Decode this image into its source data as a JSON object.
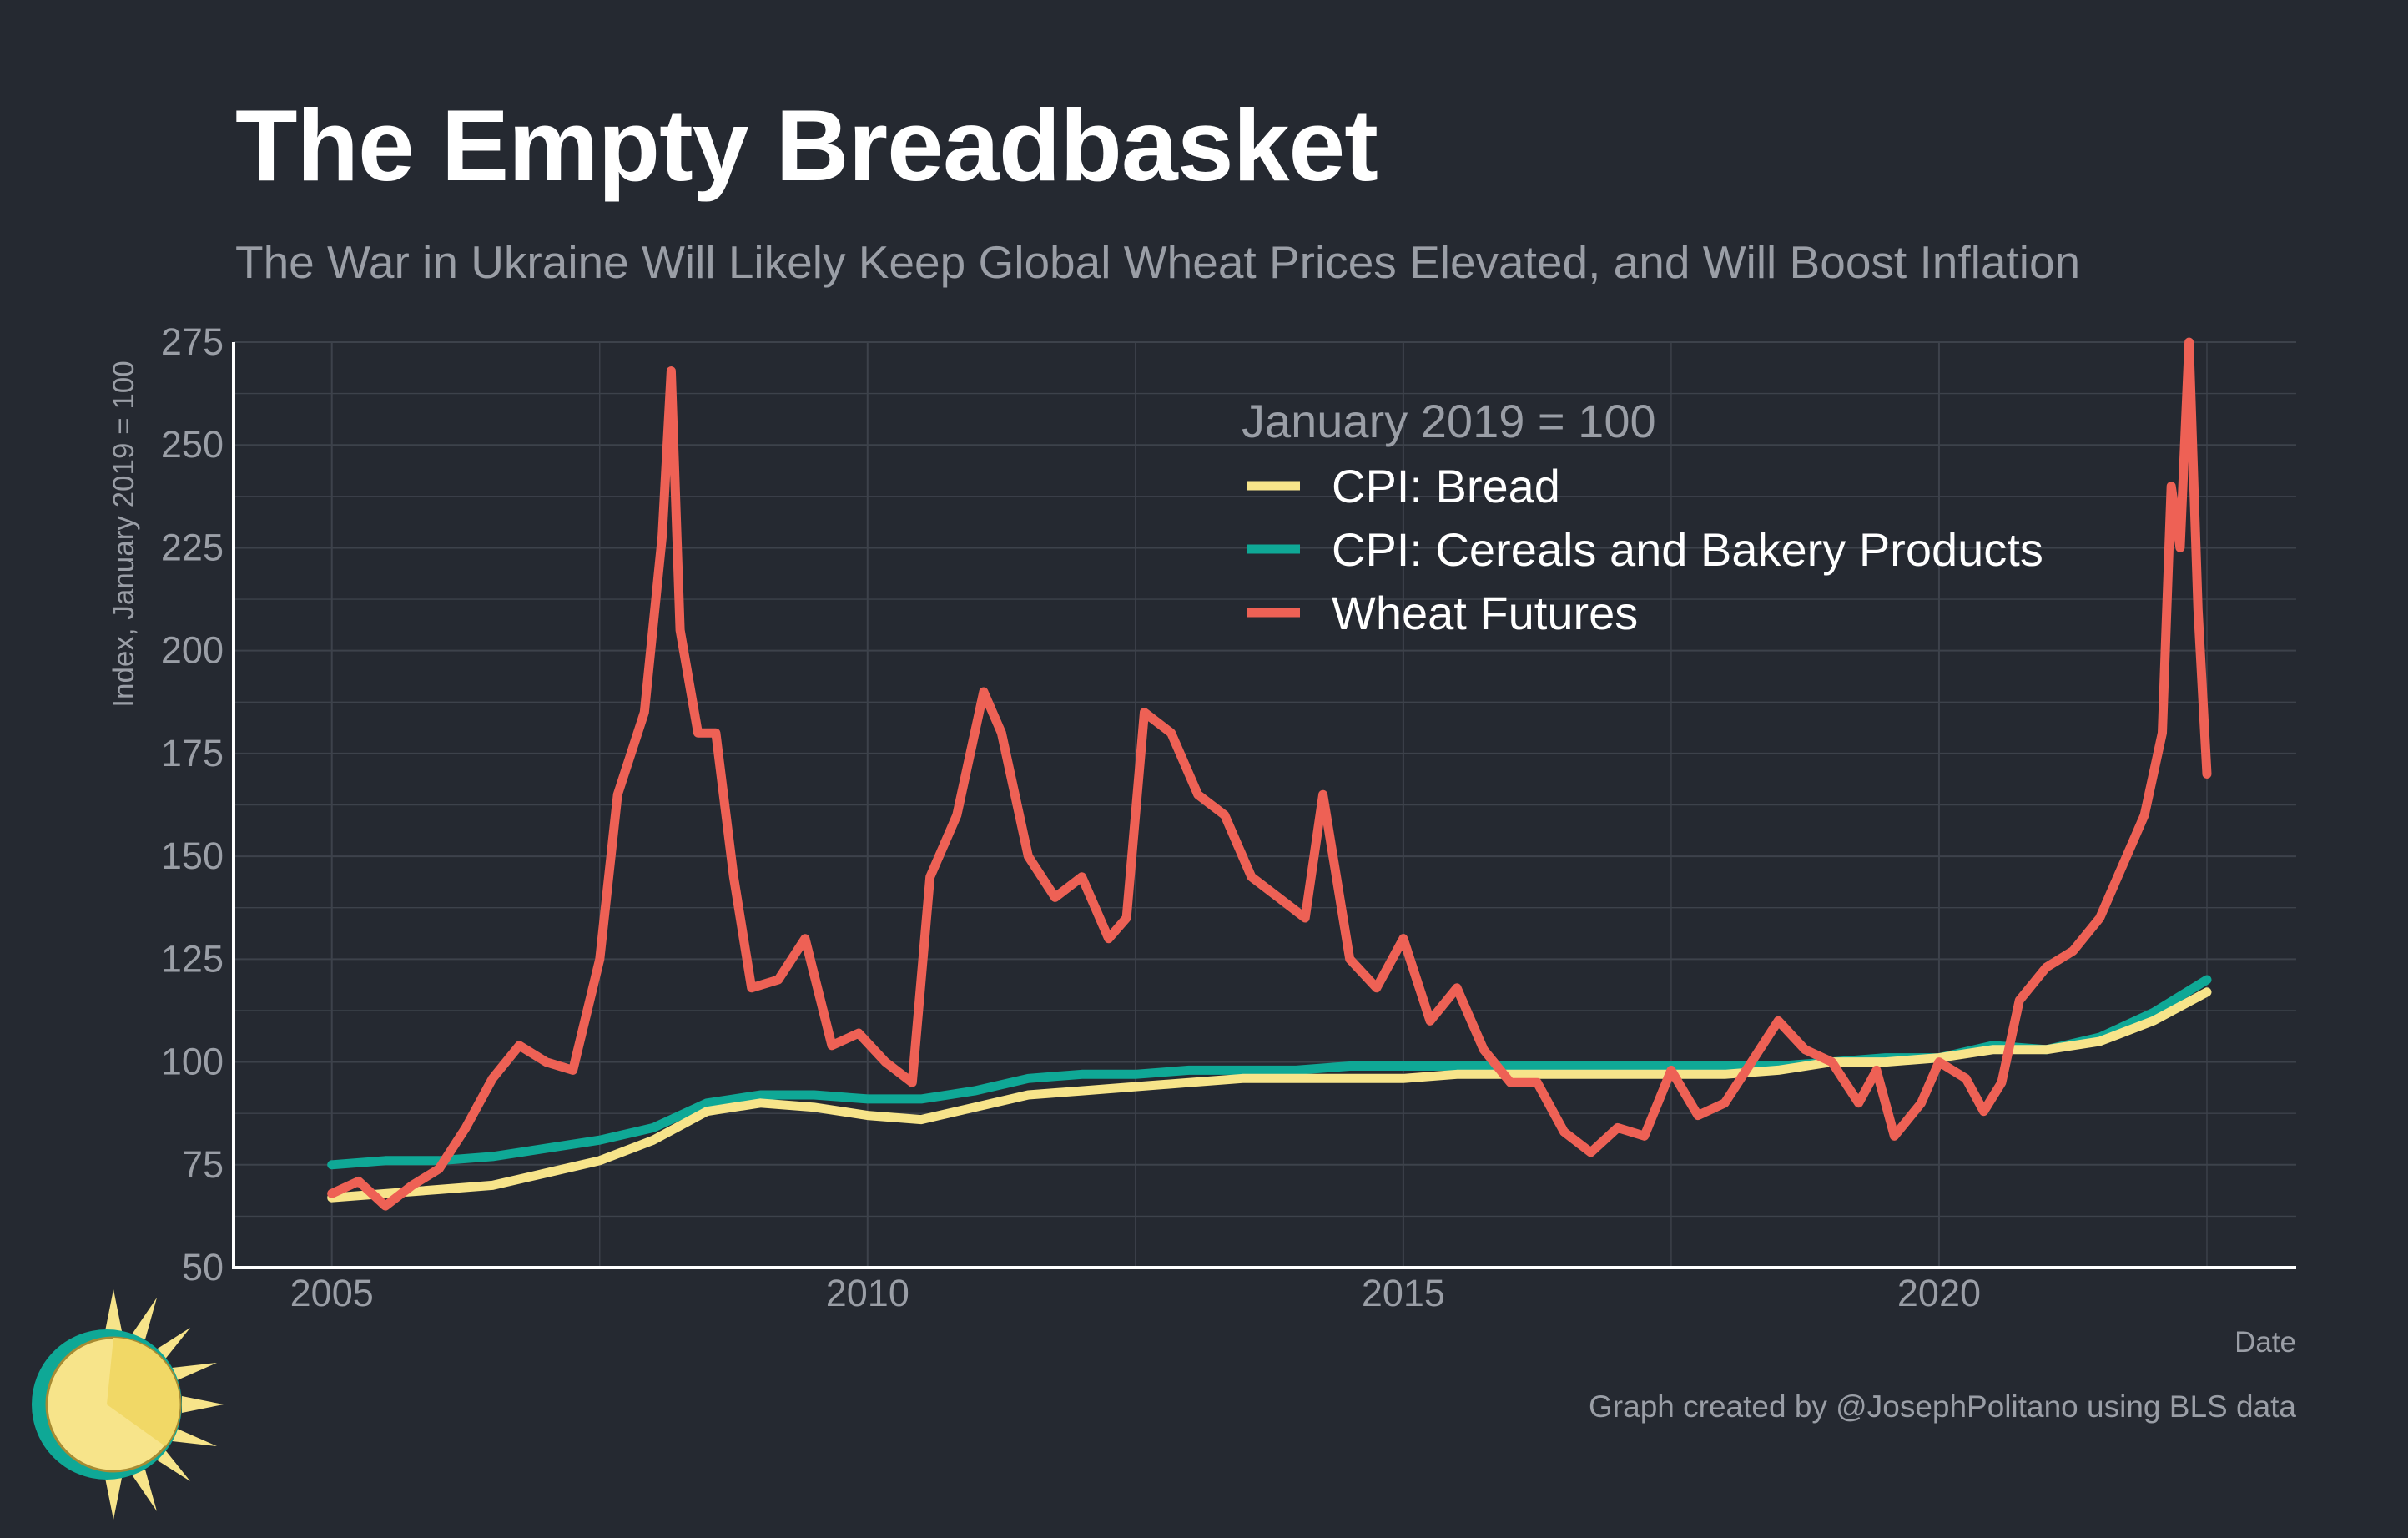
{
  "header": {
    "title": "The Empty Breadbasket",
    "subtitle": "The War in Ukraine Will Likely Keep Global Wheat Prices Elevated, and Will Boost Inflation"
  },
  "footer": {
    "caption": "Graph created by @JosephPolitano using BLS data"
  },
  "logo": {
    "icon": "sun-icon"
  },
  "colors": {
    "background": "#252931",
    "grid": "#3d424b",
    "axis": "#ffffff",
    "bread": "#f7e48a",
    "cereals": "#0fa896",
    "wheat": "#ee6155"
  },
  "chart_data": {
    "type": "line",
    "xlabel": "Date",
    "ylabel": "Index, January 2019 = 100",
    "xlim": [
      "2004-02",
      "2023-05"
    ],
    "ylim": [
      50,
      275
    ],
    "xticks": [
      "2005",
      "2010",
      "2015",
      "2020"
    ],
    "yticks": [
      50,
      75,
      100,
      125,
      150,
      175,
      200,
      225,
      250,
      275
    ],
    "grid": true,
    "legend": {
      "title": "January 2019 = 100",
      "position": "top-right"
    },
    "series": [
      {
        "name": "CPI: Bread",
        "points": [
          [
            "2005-01",
            67
          ],
          [
            "2005-07",
            68
          ],
          [
            "2006-01",
            69
          ],
          [
            "2006-07",
            70
          ],
          [
            "2007-01",
            73
          ],
          [
            "2007-07",
            76
          ],
          [
            "2008-01",
            81
          ],
          [
            "2008-07",
            88
          ],
          [
            "2009-01",
            90
          ],
          [
            "2009-07",
            89
          ],
          [
            "2010-01",
            87
          ],
          [
            "2010-07",
            86
          ],
          [
            "2011-01",
            89
          ],
          [
            "2011-07",
            92
          ],
          [
            "2012-01",
            93
          ],
          [
            "2012-07",
            94
          ],
          [
            "2013-01",
            95
          ],
          [
            "2013-07",
            96
          ],
          [
            "2014-01",
            96
          ],
          [
            "2014-07",
            96
          ],
          [
            "2015-01",
            96
          ],
          [
            "2015-07",
            97
          ],
          [
            "2016-01",
            97
          ],
          [
            "2016-07",
            97
          ],
          [
            "2017-01",
            97
          ],
          [
            "2017-07",
            97
          ],
          [
            "2018-01",
            97
          ],
          [
            "2018-07",
            98
          ],
          [
            "2019-01",
            100
          ],
          [
            "2019-07",
            100
          ],
          [
            "2020-01",
            101
          ],
          [
            "2020-07",
            103
          ],
          [
            "2021-01",
            103
          ],
          [
            "2021-07",
            105
          ],
          [
            "2022-01",
            110
          ],
          [
            "2022-07",
            117
          ]
        ]
      },
      {
        "name": "CPI: Cereals and Bakery Products",
        "points": [
          [
            "2005-01",
            75
          ],
          [
            "2005-07",
            76
          ],
          [
            "2006-01",
            76
          ],
          [
            "2006-07",
            77
          ],
          [
            "2007-01",
            79
          ],
          [
            "2007-07",
            81
          ],
          [
            "2008-01",
            84
          ],
          [
            "2008-07",
            90
          ],
          [
            "2009-01",
            92
          ],
          [
            "2009-07",
            92
          ],
          [
            "2010-01",
            91
          ],
          [
            "2010-07",
            91
          ],
          [
            "2011-01",
            93
          ],
          [
            "2011-07",
            96
          ],
          [
            "2012-01",
            97
          ],
          [
            "2012-07",
            97
          ],
          [
            "2013-01",
            98
          ],
          [
            "2013-07",
            98
          ],
          [
            "2014-01",
            98
          ],
          [
            "2014-07",
            99
          ],
          [
            "2015-01",
            99
          ],
          [
            "2015-07",
            99
          ],
          [
            "2016-01",
            99
          ],
          [
            "2016-07",
            99
          ],
          [
            "2017-01",
            99
          ],
          [
            "2017-07",
            99
          ],
          [
            "2018-01",
            99
          ],
          [
            "2018-07",
            99
          ],
          [
            "2019-01",
            100
          ],
          [
            "2019-07",
            101
          ],
          [
            "2020-01",
            101
          ],
          [
            "2020-07",
            104
          ],
          [
            "2021-01",
            103
          ],
          [
            "2021-07",
            106
          ],
          [
            "2022-01",
            112
          ],
          [
            "2022-07",
            120
          ]
        ]
      },
      {
        "name": "Wheat Futures",
        "points": [
          [
            "2005-01",
            68
          ],
          [
            "2005-04",
            71
          ],
          [
            "2005-07",
            65
          ],
          [
            "2005-10",
            70
          ],
          [
            "2006-01",
            74
          ],
          [
            "2006-04",
            84
          ],
          [
            "2006-07",
            96
          ],
          [
            "2006-10",
            104
          ],
          [
            "2007-01",
            100
          ],
          [
            "2007-04",
            98
          ],
          [
            "2007-07",
            125
          ],
          [
            "2007-09",
            165
          ],
          [
            "2007-12",
            185
          ],
          [
            "2008-02",
            228
          ],
          [
            "2008-03",
            268
          ],
          [
            "2008-04",
            205
          ],
          [
            "2008-06",
            180
          ],
          [
            "2008-08",
            180
          ],
          [
            "2008-10",
            145
          ],
          [
            "2008-12",
            118
          ],
          [
            "2009-03",
            120
          ],
          [
            "2009-06",
            130
          ],
          [
            "2009-09",
            104
          ],
          [
            "2009-12",
            107
          ],
          [
            "2010-03",
            100
          ],
          [
            "2010-06",
            95
          ],
          [
            "2010-08",
            145
          ],
          [
            "2010-11",
            160
          ],
          [
            "2011-02",
            190
          ],
          [
            "2011-04",
            180
          ],
          [
            "2011-07",
            150
          ],
          [
            "2011-10",
            140
          ],
          [
            "2012-01",
            145
          ],
          [
            "2012-04",
            130
          ],
          [
            "2012-06",
            135
          ],
          [
            "2012-08",
            185
          ],
          [
            "2012-11",
            180
          ],
          [
            "2013-02",
            165
          ],
          [
            "2013-05",
            160
          ],
          [
            "2013-08",
            145
          ],
          [
            "2013-11",
            140
          ],
          [
            "2014-02",
            135
          ],
          [
            "2014-04",
            165
          ],
          [
            "2014-07",
            125
          ],
          [
            "2014-10",
            118
          ],
          [
            "2015-01",
            130
          ],
          [
            "2015-04",
            110
          ],
          [
            "2015-07",
            118
          ],
          [
            "2015-10",
            103
          ],
          [
            "2016-01",
            95
          ],
          [
            "2016-04",
            95
          ],
          [
            "2016-07",
            83
          ],
          [
            "2016-10",
            78
          ],
          [
            "2017-01",
            84
          ],
          [
            "2017-04",
            82
          ],
          [
            "2017-07",
            98
          ],
          [
            "2017-10",
            87
          ],
          [
            "2018-01",
            90
          ],
          [
            "2018-04",
            100
          ],
          [
            "2018-07",
            110
          ],
          [
            "2018-10",
            103
          ],
          [
            "2019-01",
            100
          ],
          [
            "2019-04",
            90
          ],
          [
            "2019-06",
            98
          ],
          [
            "2019-08",
            82
          ],
          [
            "2019-11",
            90
          ],
          [
            "2020-01",
            100
          ],
          [
            "2020-04",
            96
          ],
          [
            "2020-06",
            88
          ],
          [
            "2020-08",
            95
          ],
          [
            "2020-10",
            115
          ],
          [
            "2021-01",
            123
          ],
          [
            "2021-04",
            127
          ],
          [
            "2021-07",
            135
          ],
          [
            "2021-10",
            150
          ],
          [
            "2021-12",
            160
          ],
          [
            "2022-02",
            180
          ],
          [
            "2022-03",
            240
          ],
          [
            "2022-04",
            225
          ],
          [
            "2022-05",
            275
          ],
          [
            "2022-06",
            210
          ],
          [
            "2022-07",
            170
          ]
        ]
      }
    ]
  }
}
